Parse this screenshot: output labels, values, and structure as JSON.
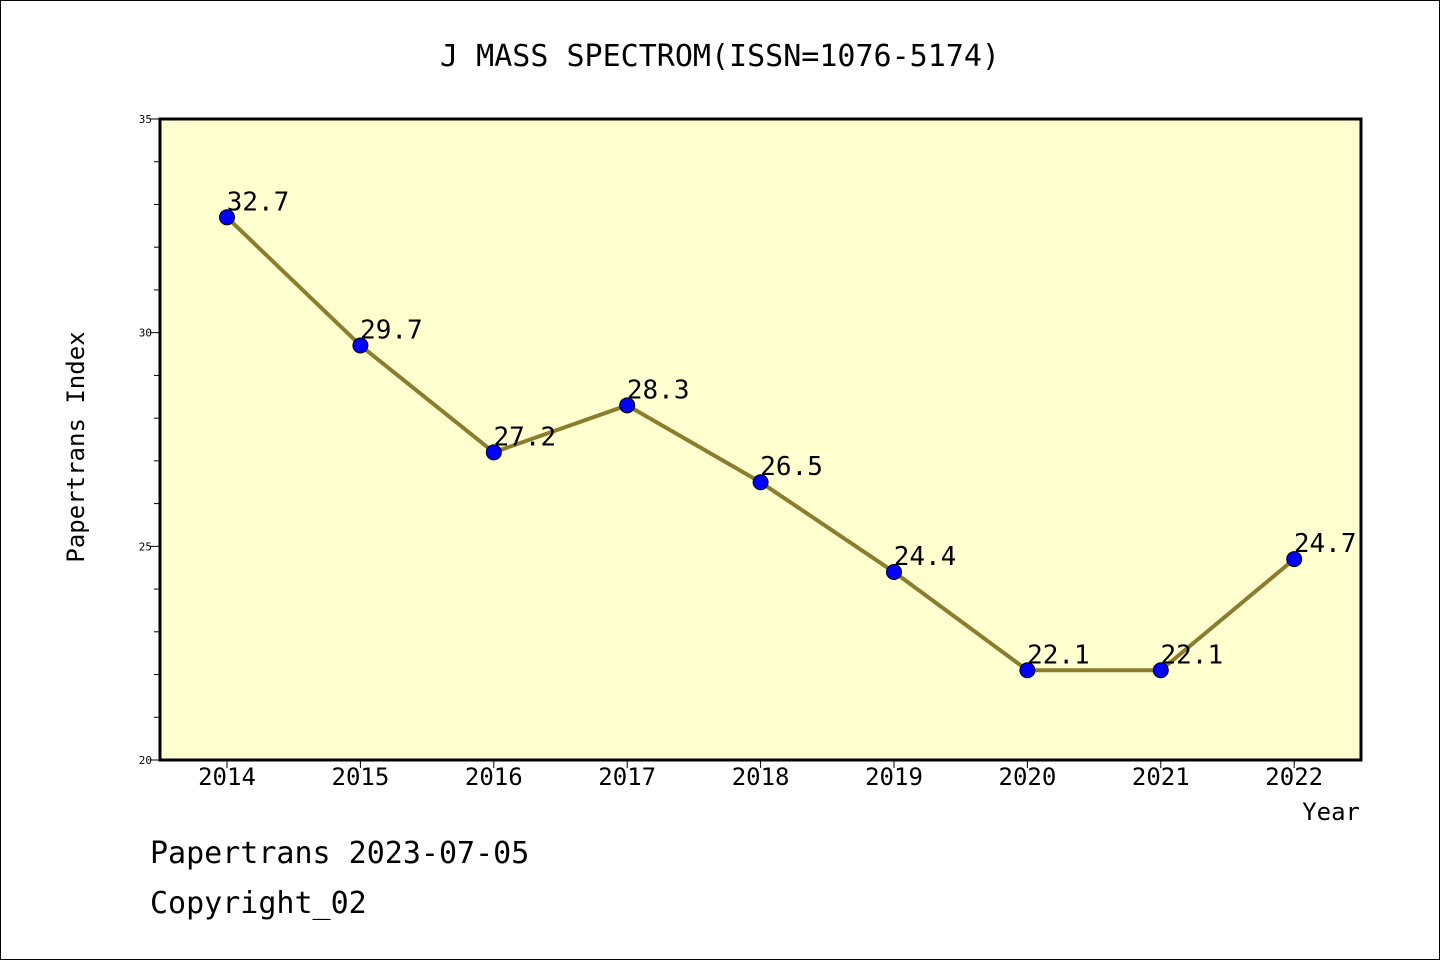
{
  "chart_data": {
    "type": "line",
    "title": "J MASS SPECTROM(ISSN=1076-5174)",
    "xlabel": "Year",
    "ylabel": "Papertrans Index",
    "categories": [
      "2014",
      "2015",
      "2016",
      "2017",
      "2018",
      "2019",
      "2020",
      "2021",
      "2022"
    ],
    "series": [
      {
        "values": [
          32.7,
          29.7,
          27.2,
          28.3,
          26.5,
          24.4,
          22.1,
          22.1,
          24.7
        ],
        "line_color": "#8b7d2e",
        "marker_color": "#0000ff"
      }
    ],
    "data_labels": [
      "32.7",
      "29.7",
      "27.2",
      "28.3",
      "26.5",
      "24.4",
      "22.1",
      "22.1",
      "24.7"
    ],
    "ylim": [
      20,
      35
    ],
    "y_ticks": [
      "20",
      "25",
      "30",
      "35"
    ],
    "plot_background": "#ffffd0",
    "grid": false,
    "legend": "none"
  },
  "footer": {
    "line1": "Papertrans 2023-07-05",
    "line2": "Copyright_02"
  }
}
